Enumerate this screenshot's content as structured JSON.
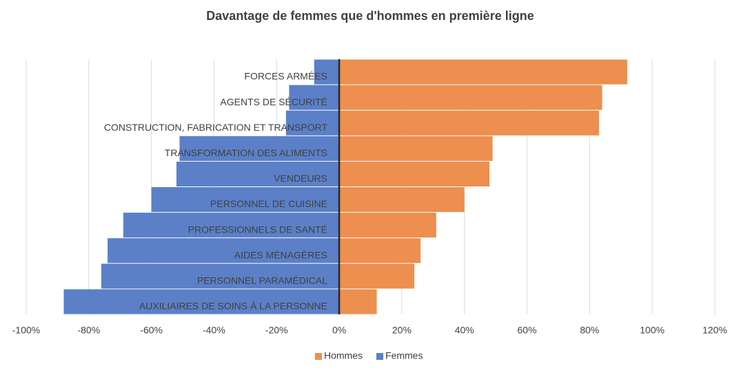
{
  "chart_data": {
    "type": "bar",
    "orientation": "horizontal",
    "title": "Davantage de femmes que d'hommes en première ligne",
    "categories": [
      "FORCES ARMÉES",
      "AGENTS DE SÉCURITÉ",
      "CONSTRUCTION, FABRICATION ET TRANSPORT",
      "TRANSFORMATION DES ALIMENTS",
      "VENDEURS",
      "PERSONNEL DE CUISINE",
      "PROFESSIONNELS DE SANTÉ",
      "AIDES MÉNAGÈRES",
      "PERSONNEL PARAMÉDICAL",
      "AUXILIAIRES DE SOINS À LA PERSONNE"
    ],
    "series": [
      {
        "name": "Hommes",
        "color": "#ed8f4e",
        "values": [
          92,
          84,
          83,
          49,
          48,
          40,
          31,
          26,
          24,
          12
        ]
      },
      {
        "name": "Femmes",
        "color": "#5b80c8",
        "values": [
          -8,
          -16,
          -17,
          -51,
          -52,
          -60,
          -69,
          -74,
          -76,
          -88
        ]
      }
    ],
    "xlim": [
      -100,
      120
    ],
    "xticks": [
      {
        "value": -100,
        "label": "-100%"
      },
      {
        "value": -80,
        "label": "-80%"
      },
      {
        "value": -60,
        "label": "-60%"
      },
      {
        "value": -40,
        "label": "-40%"
      },
      {
        "value": -20,
        "label": "-20%"
      },
      {
        "value": 0,
        "label": "0%"
      },
      {
        "value": 20,
        "label": "20%"
      },
      {
        "value": 40,
        "label": "40%"
      },
      {
        "value": 60,
        "label": "60%"
      },
      {
        "value": 80,
        "label": "80%"
      },
      {
        "value": 100,
        "label": "100%"
      },
      {
        "value": 120,
        "label": "120%"
      }
    ],
    "grid": true,
    "legend": "bottom"
  }
}
